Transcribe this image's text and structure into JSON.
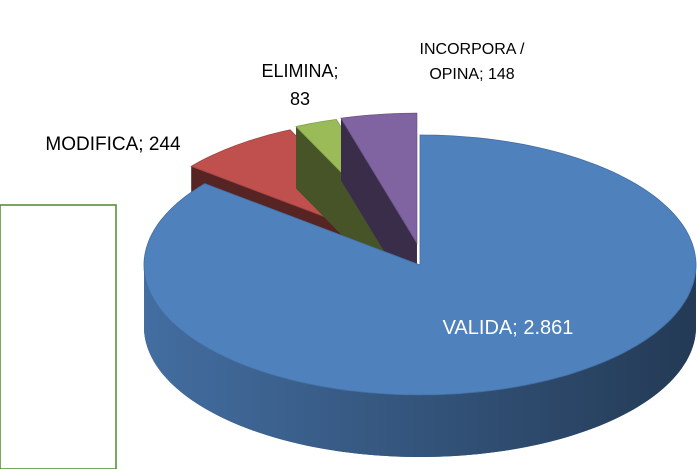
{
  "chart_data": {
    "type": "pie",
    "values": [
      2861,
      244,
      83,
      148
    ],
    "value_labels": [
      "VALIDA; 2.861",
      "MODIFICA; 244",
      "ELIMINA;\n83",
      "INCORPORA /\nOPINA; 148"
    ],
    "colors": [
      "#4f81bd",
      "#c0504d",
      "#9bbb59",
      "#8064a2"
    ]
  }
}
